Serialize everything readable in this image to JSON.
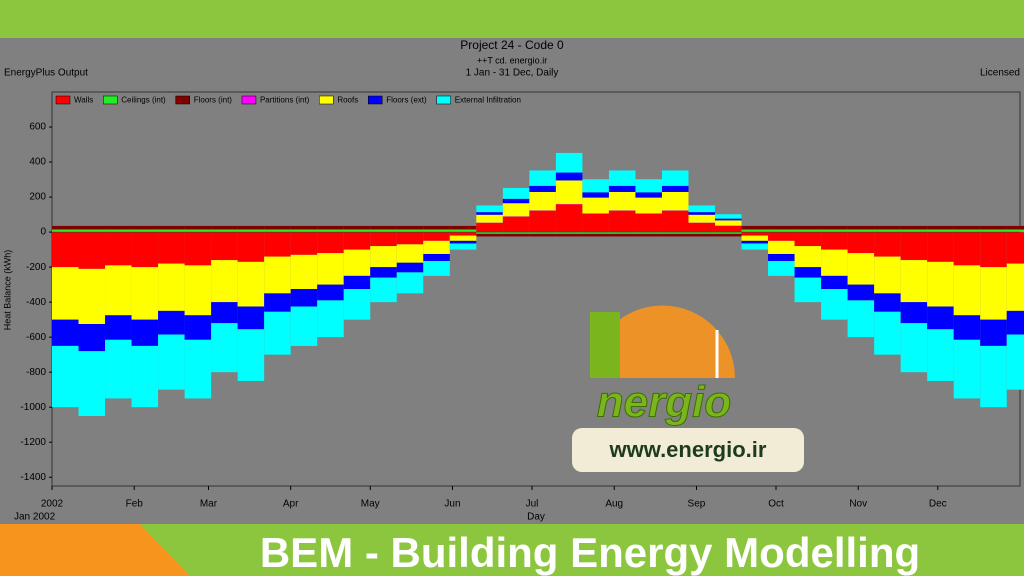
{
  "header": {
    "left": "EnergyPlus Output",
    "right": "Licensed"
  },
  "chart_data": {
    "type": "stacked_bar",
    "title": "Project 24 - Code 0",
    "subtitle": "++T cd. energio.ir",
    "period": "1 Jan - 31 Dec, Daily",
    "y_label": "Heat Balance (kWh)",
    "x_label": "Day",
    "x_sublabel": "Jan  2002",
    "bar_width": 10,
    "x": [
      1,
      11,
      21,
      31,
      41,
      51,
      61,
      71,
      81,
      91,
      101,
      111,
      121,
      131,
      141,
      151,
      161,
      171,
      181,
      191,
      201,
      211,
      221,
      231,
      241,
      251,
      261,
      271,
      281,
      291,
      301,
      311,
      321,
      331,
      341,
      351,
      361
    ],
    "xlim": [
      1,
      366
    ],
    "xticks": [
      {
        "value": 1,
        "label": "2002"
      },
      {
        "value": 32,
        "label": "Feb"
      },
      {
        "value": 60,
        "label": "Mar"
      },
      {
        "value": 91,
        "label": "Apr"
      },
      {
        "value": 121,
        "label": "May"
      },
      {
        "value": 152,
        "label": "Jun"
      },
      {
        "value": 182,
        "label": "Jul"
      },
      {
        "value": 213,
        "label": "Aug"
      },
      {
        "value": 244,
        "label": "Sep"
      },
      {
        "value": 274,
        "label": "Oct"
      },
      {
        "value": 305,
        "label": "Nov"
      },
      {
        "value": 335,
        "label": "Dec"
      }
    ],
    "ylim": [
      -1450,
      800
    ],
    "yticks": [
      600,
      400,
      200,
      0,
      -200,
      -400,
      -600,
      -800,
      -1000,
      -1200,
      -1400
    ],
    "series": [
      {
        "name": "Walls",
        "color": "#ff0000",
        "values": [
          -200,
          -210,
          -190,
          -200,
          -180,
          -190,
          -160,
          -170,
          -140,
          -130,
          -120,
          -100,
          -80,
          -70,
          -50,
          -20,
          52,
          88,
          122,
          158,
          105,
          122,
          105,
          122,
          52,
          35,
          -20,
          -50,
          -80,
          -100,
          -120,
          -140,
          -160,
          -170,
          -190,
          -200,
          -180
        ]
      },
      {
        "name": "Ceilings (int)",
        "color": "#22ee22",
        "values": [
          15,
          15,
          15,
          15,
          15,
          15,
          15,
          15,
          15,
          15,
          15,
          15,
          15,
          15,
          15,
          15,
          -10,
          -10,
          -10,
          -10,
          -10,
          -10,
          -10,
          -10,
          -10,
          -10,
          15,
          15,
          15,
          15,
          15,
          15,
          15,
          15,
          15,
          15,
          15
        ]
      },
      {
        "name": "Floors (int)",
        "color": "#800000",
        "values": [
          20,
          20,
          20,
          20,
          20,
          20,
          20,
          20,
          20,
          20,
          20,
          20,
          20,
          20,
          20,
          20,
          -15,
          -15,
          -15,
          -15,
          -15,
          -15,
          -15,
          -15,
          -15,
          -15,
          20,
          20,
          20,
          20,
          20,
          20,
          20,
          20,
          20,
          20,
          20
        ]
      },
      {
        "name": "Partitions (int)",
        "color": "#ff00ff",
        "values": [
          2,
          2,
          2,
          2,
          2,
          2,
          2,
          2,
          2,
          2,
          2,
          2,
          2,
          2,
          2,
          2,
          2,
          2,
          2,
          2,
          2,
          2,
          2,
          2,
          2,
          2,
          2,
          2,
          2,
          2,
          2,
          2,
          2,
          2,
          2,
          2,
          2
        ]
      },
      {
        "name": "Roofs",
        "color": "#ffff00",
        "values": [
          -300,
          -315,
          -285,
          -300,
          -270,
          -285,
          -240,
          -255,
          -210,
          -195,
          -180,
          -150,
          -120,
          -105,
          -75,
          -30,
          45,
          75,
          105,
          135,
          90,
          105,
          90,
          105,
          45,
          30,
          -30,
          -75,
          -120,
          -150,
          -180,
          -210,
          -240,
          -255,
          -285,
          -300,
          -270
        ]
      },
      {
        "name": "Floors (ext)",
        "color": "#0000ff",
        "values": [
          -150,
          -155,
          -140,
          -150,
          -135,
          -140,
          -120,
          -130,
          -105,
          -100,
          -90,
          -75,
          -60,
          -55,
          -40,
          -15,
          15,
          25,
          35,
          45,
          30,
          35,
          30,
          35,
          15,
          10,
          -15,
          -40,
          -60,
          -75,
          -90,
          -105,
          -120,
          -130,
          -140,
          -150,
          -135
        ]
      },
      {
        "name": "External Infiltration",
        "color": "#00ffff",
        "values": [
          -350,
          -370,
          -335,
          -350,
          -315,
          -335,
          -280,
          -295,
          -245,
          -225,
          -210,
          -175,
          -140,
          -120,
          -85,
          -35,
          38,
          62,
          88,
          112,
          75,
          88,
          75,
          88,
          38,
          25,
          -35,
          -85,
          -140,
          -175,
          -210,
          -245,
          -280,
          -295,
          -335,
          -350,
          -315
        ]
      }
    ]
  },
  "logo": {
    "name": "nergio",
    "url": "www.energio.ir"
  },
  "banner": "BEM - Building Energy Modelling"
}
